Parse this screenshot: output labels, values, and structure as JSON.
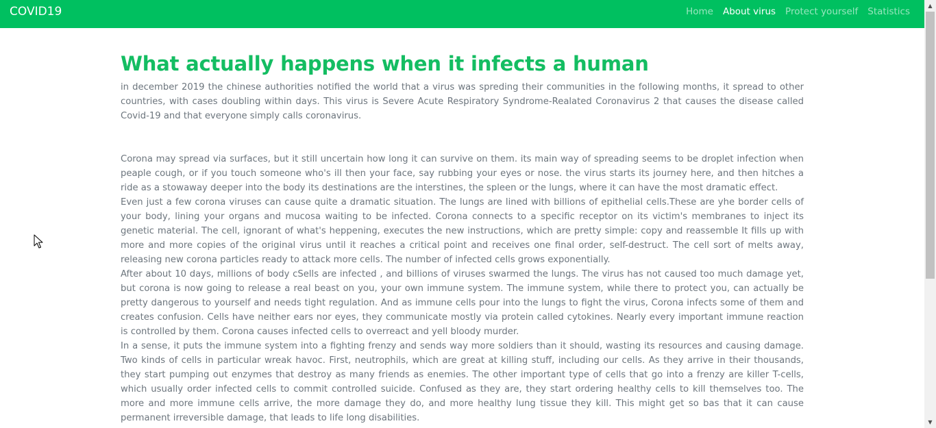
{
  "navbar": {
    "brand": "COVID19",
    "links": [
      {
        "label": "Home"
      },
      {
        "label": "About virus"
      },
      {
        "label": "Protect yourself"
      },
      {
        "label": "Statistics"
      }
    ],
    "active_index": 1,
    "background_color": "#00c060"
  },
  "main": {
    "heading": "What actually happens when it infects a human",
    "heading_color": "#14bd62",
    "intro": "in december 2019 the chinese authorities notified the world that a virus was spreding their communities in the following months, it spread to other countries, with cases doubling within days. This virus is Severe Acute Respiratory Syndrome-Realated Coronavirus 2 that causes the disease called Covid-19 and that everyone simply calls coronavirus.",
    "paragraphs": [
      "Corona may spread via surfaces, but it still uncertain how long it can survive on them. its main way of spreading seems to be droplet infection when peaple cough, or if you touch someone who's ill then your face, say rubbing your eyes or nose. the virus starts its journey here, and then hitches a ride as a stowaway deeper into the body its destinations are the interstines, the spleen or the lungs, where it can have the most dramatic effect.",
      "Even just a few corona viruses can cause quite a dramatic situation. The lungs are lined with billions of epithelial cells.These are yhe border cells of your body, lining your organs and mucosa waiting to be infected. Corona connects to a specific receptor on its victim's membranes to inject its genetic material. The cell, ignorant of what's heppening, executes the new instructions, which are pretty simple: copy and reassemble It fills up with more and more copies of the original virus until it reaches a critical point and receives one final order, self-destruct. The cell sort of melts away, releasing new corona particles ready to attack more cells. The number of infected cells grows exponentially.",
      "After about 10 days, millions of body cSells are infected , and billions of viruses swarmed the lungs. The virus has not caused too much damage yet, but corona is now going to release a real beast on you, your own immune system. The immune system, while there to protect you, can actually be pretty dangerous to yourself and needs tight regulation. And as immune cells pour into the lungs to fight the virus, Corona infects some of them and creates confusion. Cells have neither ears nor eyes, they communicate mostly via protein called cytokines. Nearly every important immune reaction is controlled by them. Corona causes infected cells to overreact and yell bloody murder.",
      "In a sense, it puts the immune system into a fighting frenzy and sends way more soldiers than it should, wasting its resources and causing damage. Two kinds of cells in particular wreak havoc. First, neutrophils, which are great at killing stuff, including our cells. As they arrive in their thousands, they start pumping out enzymes that destroy as many friends as enemies. The other important type of cells that go into a frenzy are killer T-cells, which usually order infected cells to commit controlled suicide. Confused as they are, they start ordering healthy cells to kill themselves too. The more and more immune cells arrive, the more damage they do, and more healthy lung tissue they kill. This might get so bas that it can cause permanent irreversible damage, that leads to life long disabilities."
    ],
    "text_color": "#6c757d"
  },
  "scrollbar": {
    "up_icon": "arrow-up-icon",
    "down_icon": "arrow-down-icon"
  },
  "cursor": {
    "icon": "mouse-pointer-icon"
  }
}
